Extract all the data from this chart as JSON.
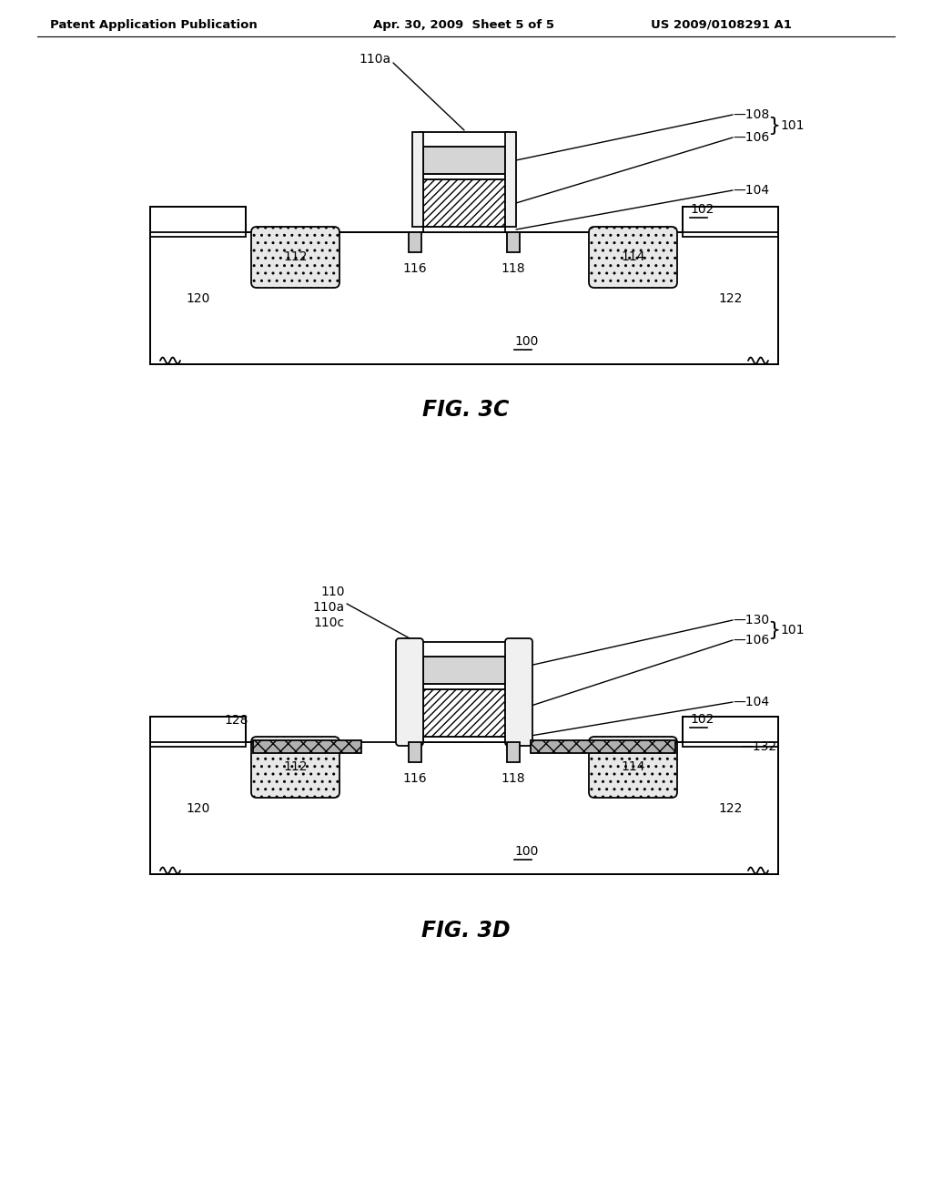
{
  "header_left": "Patent Application Publication",
  "header_mid": "Apr. 30, 2009  Sheet 5 of 5",
  "header_right": "US 2009/0108291 A1",
  "fig3c_label": "FIG. 3C",
  "fig3d_label": "FIG. 3D",
  "bg_color": "#ffffff",
  "line_color": "#000000"
}
